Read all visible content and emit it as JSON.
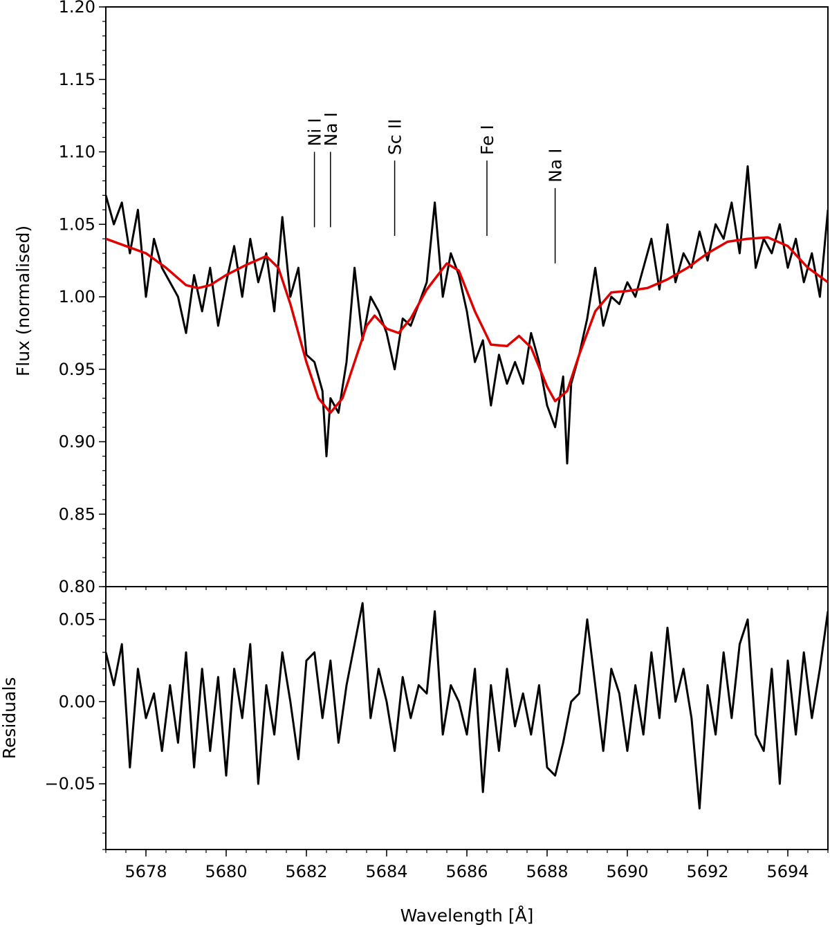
{
  "chart_data": [
    {
      "type": "line",
      "panel": "flux",
      "title": "",
      "xlabel": "",
      "ylabel": "Flux (normalised)",
      "xlim": [
        5677,
        5695
      ],
      "ylim": [
        0.8,
        1.2
      ],
      "yticks": [
        0.8,
        0.85,
        0.9,
        0.95,
        1.0,
        1.05,
        1.1,
        1.15,
        1.2
      ],
      "ytick_labels": [
        "0.80",
        "0.85",
        "0.90",
        "0.95",
        "1.00",
        "1.05",
        "1.10",
        "1.15",
        "1.20"
      ],
      "grid": false,
      "series": [
        {
          "color": "#000000",
          "x": [
            5677.0,
            5677.2,
            5677.4,
            5677.6,
            5677.8,
            5678.0,
            5678.2,
            5678.4,
            5678.6,
            5678.8,
            5679.0,
            5679.2,
            5679.4,
            5679.6,
            5679.8,
            5680.0,
            5680.2,
            5680.4,
            5680.6,
            5680.8,
            5681.0,
            5681.2,
            5681.4,
            5681.6,
            5681.8,
            5682.0,
            5682.2,
            5682.4,
            5682.5,
            5682.6,
            5682.8,
            5683.0,
            5683.2,
            5683.4,
            5683.6,
            5683.8,
            5684.0,
            5684.2,
            5684.4,
            5684.6,
            5684.8,
            5685.0,
            5685.2,
            5685.4,
            5685.6,
            5685.8,
            5686.0,
            5686.2,
            5686.4,
            5686.6,
            5686.8,
            5687.0,
            5687.2,
            5687.4,
            5687.6,
            5687.8,
            5688.0,
            5688.2,
            5688.4,
            5688.5,
            5688.6,
            5688.8,
            5689.0,
            5689.2,
            5689.4,
            5689.6,
            5689.8,
            5690.0,
            5690.2,
            5690.4,
            5690.6,
            5690.8,
            5691.0,
            5691.2,
            5691.4,
            5691.6,
            5691.8,
            5692.0,
            5692.2,
            5692.4,
            5692.6,
            5692.8,
            5693.0,
            5693.2,
            5693.4,
            5693.6,
            5693.8,
            5694.0,
            5694.2,
            5694.4,
            5694.6,
            5694.8,
            5695.0
          ],
          "y": [
            1.07,
            1.05,
            1.065,
            1.03,
            1.06,
            1.0,
            1.04,
            1.02,
            1.01,
            1.0,
            0.975,
            1.015,
            0.99,
            1.02,
            0.98,
            1.01,
            1.035,
            1.0,
            1.04,
            1.01,
            1.03,
            0.99,
            1.055,
            1.0,
            1.02,
            0.96,
            0.955,
            0.935,
            0.89,
            0.93,
            0.92,
            0.955,
            1.02,
            0.97,
            1.0,
            0.99,
            0.975,
            0.95,
            0.985,
            0.98,
            0.995,
            1.01,
            1.065,
            1.0,
            1.03,
            1.015,
            0.99,
            0.955,
            0.97,
            0.925,
            0.96,
            0.94,
            0.955,
            0.94,
            0.975,
            0.955,
            0.925,
            0.91,
            0.945,
            0.885,
            0.94,
            0.96,
            0.985,
            1.02,
            0.98,
            1.0,
            0.995,
            1.01,
            1.0,
            1.02,
            1.04,
            1.005,
            1.05,
            1.01,
            1.03,
            1.02,
            1.045,
            1.025,
            1.05,
            1.04,
            1.065,
            1.03,
            1.09,
            1.02,
            1.04,
            1.03,
            1.05,
            1.02,
            1.04,
            1.01,
            1.03,
            1.0,
            1.06
          ]
        },
        {
          "color": "#e00000",
          "x": [
            5677.0,
            5677.5,
            5678.0,
            5678.5,
            5679.0,
            5679.3,
            5679.6,
            5680.0,
            5680.5,
            5681.0,
            5681.3,
            5681.6,
            5682.0,
            5682.3,
            5682.6,
            5682.9,
            5683.2,
            5683.5,
            5683.7,
            5684.0,
            5684.3,
            5684.6,
            5685.0,
            5685.5,
            5685.8,
            5686.2,
            5686.6,
            5687.0,
            5687.3,
            5687.6,
            5688.0,
            5688.2,
            5688.5,
            5688.8,
            5689.2,
            5689.6,
            5690.0,
            5690.5,
            5691.0,
            5691.5,
            5692.0,
            5692.5,
            5693.0,
            5693.5,
            5694.0,
            5694.5,
            5695.0
          ],
          "y": [
            1.04,
            1.035,
            1.03,
            1.02,
            1.008,
            1.006,
            1.008,
            1.015,
            1.022,
            1.028,
            1.02,
            0.995,
            0.955,
            0.93,
            0.92,
            0.93,
            0.955,
            0.98,
            0.987,
            0.978,
            0.975,
            0.985,
            1.005,
            1.023,
            1.018,
            0.99,
            0.967,
            0.966,
            0.973,
            0.965,
            0.938,
            0.928,
            0.935,
            0.96,
            0.99,
            1.003,
            1.004,
            1.006,
            1.012,
            1.02,
            1.03,
            1.038,
            1.04,
            1.041,
            1.035,
            1.02,
            1.01
          ]
        }
      ],
      "annotations": [
        {
          "label": "Ni I",
          "x": 5682.2,
          "y_top": 1.1,
          "y_bottom": 1.048
        },
        {
          "label": "Na I",
          "x": 5682.6,
          "y_top": 1.1,
          "y_bottom": 1.048
        },
        {
          "label": "Sc II",
          "x": 5684.2,
          "y_top": 1.094,
          "y_bottom": 1.042
        },
        {
          "label": "Fe I",
          "x": 5686.5,
          "y_top": 1.094,
          "y_bottom": 1.042
        },
        {
          "label": "Na I",
          "x": 5688.2,
          "y_top": 1.075,
          "y_bottom": 1.023
        }
      ]
    },
    {
      "type": "line",
      "panel": "residuals",
      "title": "",
      "xlabel": "Wavelength [Å]",
      "ylabel": "Residuals",
      "xlim": [
        5677,
        5695
      ],
      "ylim": [
        -0.09,
        0.07
      ],
      "yticks": [
        -0.05,
        0.0,
        0.05
      ],
      "ytick_labels": [
        "−0.05",
        "0.00",
        "0.05"
      ],
      "xticks": [
        5678,
        5680,
        5682,
        5684,
        5686,
        5688,
        5690,
        5692,
        5694
      ],
      "xtick_labels": [
        "5678",
        "5680",
        "5682",
        "5684",
        "5686",
        "5688",
        "5690",
        "5692",
        "5694"
      ],
      "grid": false,
      "series": [
        {
          "color": "#000000",
          "x": [
            5677.0,
            5677.2,
            5677.4,
            5677.6,
            5677.8,
            5678.0,
            5678.2,
            5678.4,
            5678.6,
            5678.8,
            5679.0,
            5679.2,
            5679.4,
            5679.6,
            5679.8,
            5680.0,
            5680.2,
            5680.4,
            5680.6,
            5680.8,
            5681.0,
            5681.2,
            5681.4,
            5681.6,
            5681.8,
            5682.0,
            5682.2,
            5682.4,
            5682.6,
            5682.8,
            5683.0,
            5683.2,
            5683.4,
            5683.6,
            5683.8,
            5684.0,
            5684.2,
            5684.4,
            5684.6,
            5684.8,
            5685.0,
            5685.2,
            5685.4,
            5685.6,
            5685.8,
            5686.0,
            5686.2,
            5686.4,
            5686.6,
            5686.8,
            5687.0,
            5687.2,
            5687.4,
            5687.6,
            5687.8,
            5688.0,
            5688.2,
            5688.4,
            5688.6,
            5688.8,
            5689.0,
            5689.2,
            5689.4,
            5689.6,
            5689.8,
            5690.0,
            5690.2,
            5690.4,
            5690.6,
            5690.8,
            5691.0,
            5691.2,
            5691.4,
            5691.6,
            5691.8,
            5692.0,
            5692.2,
            5692.4,
            5692.6,
            5692.8,
            5693.0,
            5693.2,
            5693.4,
            5693.6,
            5693.8,
            5694.0,
            5694.2,
            5694.4,
            5694.6,
            5694.8,
            5695.0
          ],
          "y": [
            0.03,
            0.01,
            0.035,
            -0.04,
            0.02,
            -0.01,
            0.005,
            -0.03,
            0.01,
            -0.025,
            0.03,
            -0.04,
            0.02,
            -0.03,
            0.015,
            -0.045,
            0.02,
            -0.01,
            0.035,
            -0.05,
            0.01,
            -0.02,
            0.03,
            0.0,
            -0.035,
            0.025,
            0.03,
            -0.01,
            0.025,
            -0.025,
            0.01,
            0.035,
            0.06,
            -0.01,
            0.02,
            0.0,
            -0.03,
            0.015,
            -0.01,
            0.01,
            0.005,
            0.055,
            -0.02,
            0.01,
            0.0,
            -0.02,
            0.02,
            -0.055,
            0.01,
            -0.03,
            0.02,
            -0.015,
            0.005,
            -0.02,
            0.01,
            -0.04,
            -0.045,
            -0.025,
            0.0,
            0.005,
            0.05,
            0.01,
            -0.03,
            0.02,
            0.005,
            -0.03,
            0.01,
            -0.02,
            0.03,
            -0.01,
            0.045,
            0.0,
            0.02,
            -0.01,
            -0.065,
            0.01,
            -0.02,
            0.03,
            -0.01,
            0.035,
            0.05,
            -0.02,
            -0.03,
            0.02,
            -0.05,
            0.025,
            -0.02,
            0.03,
            -0.01,
            0.02,
            0.055
          ]
        }
      ]
    }
  ]
}
